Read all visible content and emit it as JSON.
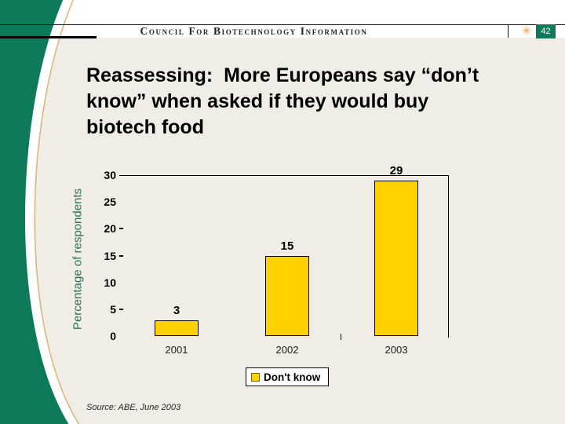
{
  "header": {
    "brand": "Council For Biotechnology Information",
    "page_number": "42"
  },
  "icons": {
    "sun": "✳"
  },
  "title": "Reassessing:  More Europeans say “don’t\nknow” when asked if they would buy\nbiotech food",
  "chart_data": {
    "type": "bar",
    "categories": [
      "2001",
      "2002",
      "2003"
    ],
    "values": [
      3,
      15,
      29
    ],
    "series": [
      {
        "name": "Don't know",
        "values": [
          3,
          15,
          29
        ]
      }
    ],
    "title": "",
    "xlabel": "",
    "ylabel": "Percentage of respondents",
    "yticks": [
      0,
      5,
      10,
      15,
      20,
      25,
      30
    ],
    "yticks_with_dash": [
      5,
      15,
      20
    ],
    "ylim": [
      0,
      30
    ],
    "grid": "top-border-and-right-border-only",
    "legend_label": "Don't know",
    "legend_position": "bottom-center",
    "bar_color": "#FFD100"
  },
  "source_note": "Source: ABE, June 2003",
  "colors": {
    "brand_green": "#0D7B5A",
    "slide_beige": "#EFEDE6",
    "bar_yellow": "#FFD100",
    "accent_tan": "#D8B87E",
    "axis_label_green": "#2F7056",
    "sun_orange": "#DE9E43"
  }
}
